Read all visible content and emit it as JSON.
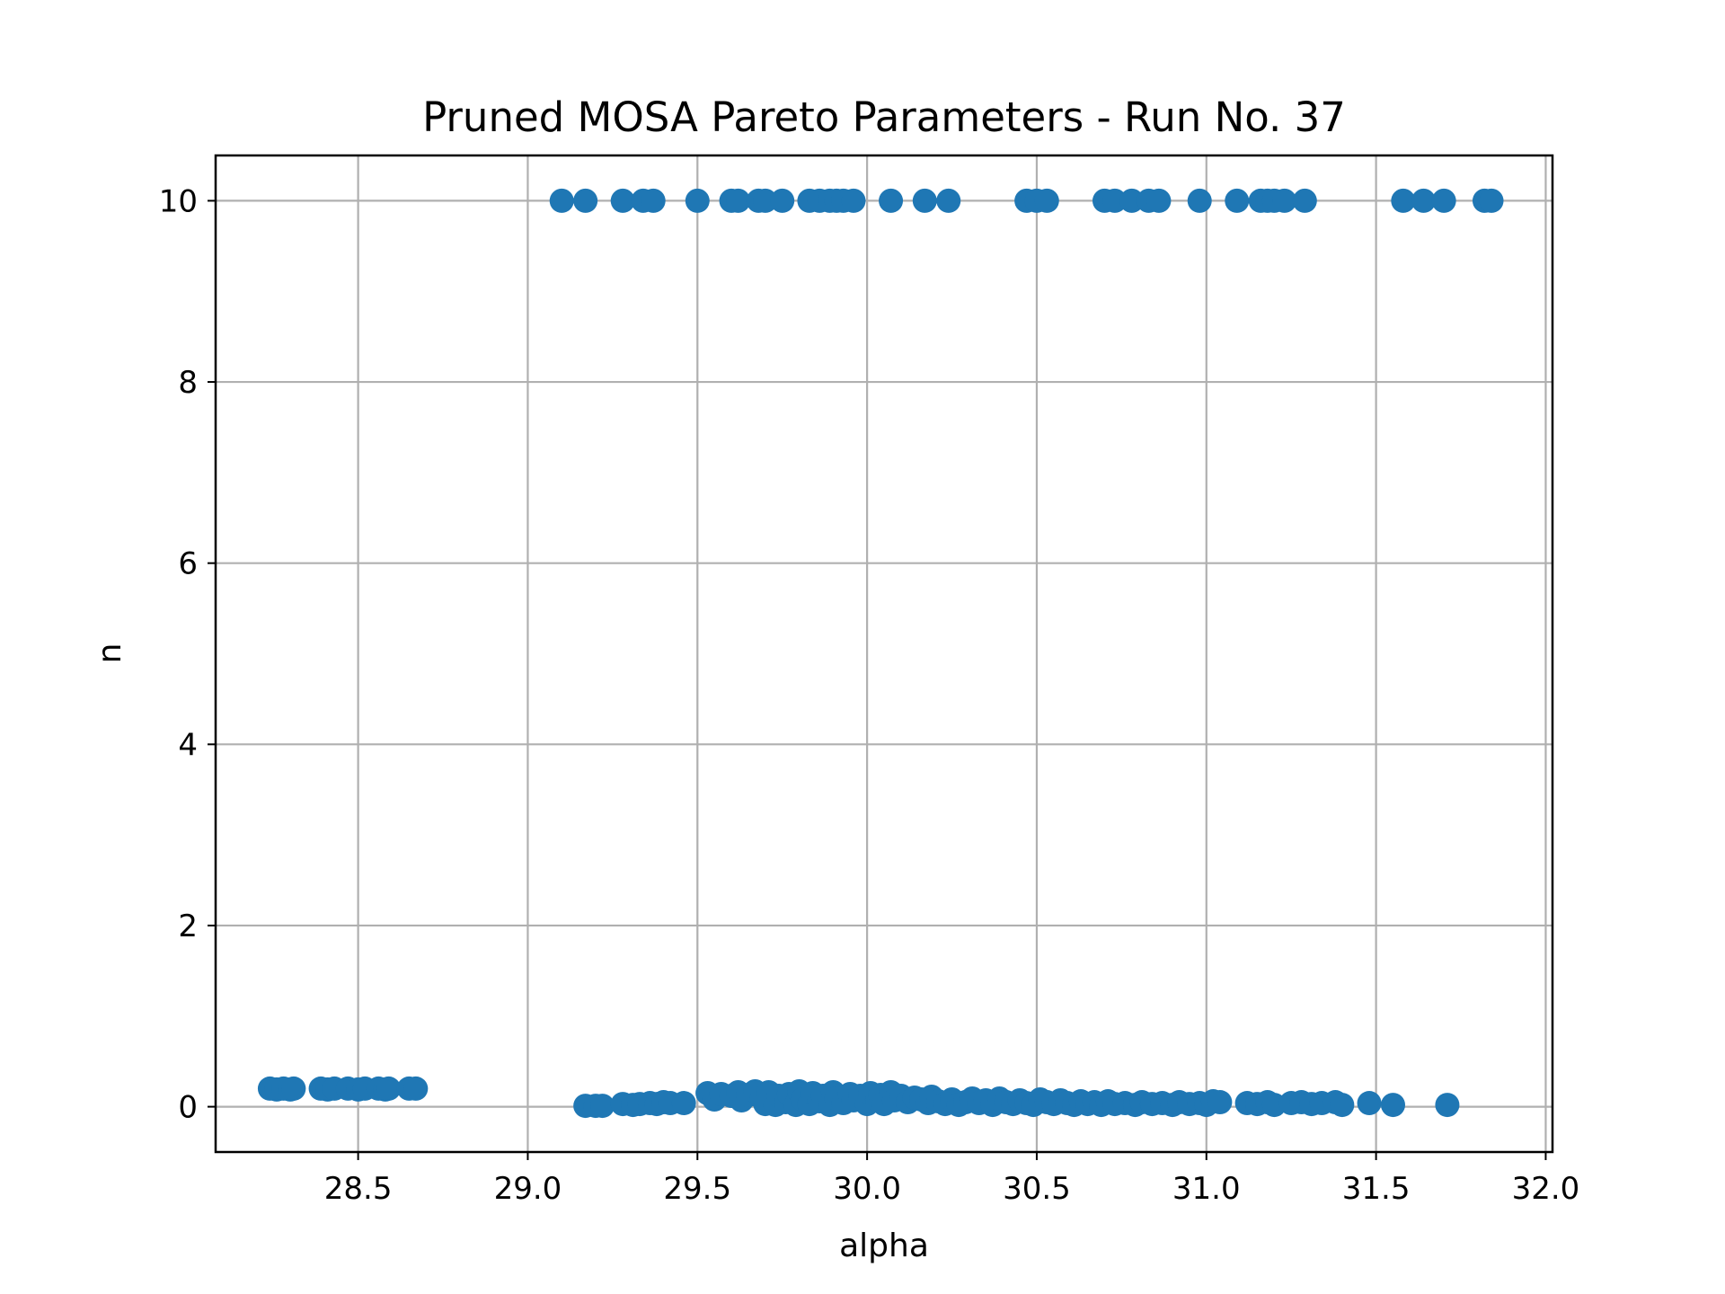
{
  "chart_data": {
    "type": "scatter",
    "title": "Pruned MOSA Pareto Parameters - Run No. 37",
    "xlabel": "alpha",
    "ylabel": "n",
    "xlim": [
      28.08,
      32.02
    ],
    "ylim": [
      -0.5,
      10.5
    ],
    "xticks": [
      28.5,
      29.0,
      29.5,
      30.0,
      30.5,
      31.0,
      31.5,
      32.0
    ],
    "xtick_labels": [
      "28.5",
      "29.0",
      "29.5",
      "30.0",
      "30.5",
      "31.0",
      "31.5",
      "32.0"
    ],
    "yticks": [
      0,
      2,
      4,
      6,
      8,
      10
    ],
    "ytick_labels": [
      "0",
      "2",
      "4",
      "6",
      "8",
      "10"
    ],
    "grid": true,
    "marker_color": "#1f77b4",
    "series": [
      {
        "points": [
          [
            28.24,
            0.2
          ],
          [
            28.26,
            0.19
          ],
          [
            28.28,
            0.2
          ],
          [
            28.3,
            0.19
          ],
          [
            28.31,
            0.2
          ],
          [
            28.39,
            0.2
          ],
          [
            28.41,
            0.19
          ],
          [
            28.43,
            0.2
          ],
          [
            28.47,
            0.2
          ],
          [
            28.5,
            0.19
          ],
          [
            28.52,
            0.2
          ],
          [
            28.56,
            0.2
          ],
          [
            28.58,
            0.19
          ],
          [
            28.59,
            0.2
          ],
          [
            28.65,
            0.2
          ],
          [
            28.67,
            0.2
          ],
          [
            29.1,
            10
          ],
          [
            29.17,
            10
          ],
          [
            29.28,
            10
          ],
          [
            29.34,
            10
          ],
          [
            29.37,
            10
          ],
          [
            29.5,
            10
          ],
          [
            29.6,
            10
          ],
          [
            29.62,
            10
          ],
          [
            29.68,
            10
          ],
          [
            29.7,
            10
          ],
          [
            29.75,
            10
          ],
          [
            29.83,
            10
          ],
          [
            29.86,
            10
          ],
          [
            29.89,
            10
          ],
          [
            29.91,
            10
          ],
          [
            29.93,
            10
          ],
          [
            29.96,
            10
          ],
          [
            30.07,
            10
          ],
          [
            30.17,
            10
          ],
          [
            30.24,
            10
          ],
          [
            30.47,
            10
          ],
          [
            30.5,
            10
          ],
          [
            30.53,
            10
          ],
          [
            30.7,
            10
          ],
          [
            30.73,
            10
          ],
          [
            30.78,
            10
          ],
          [
            30.83,
            10
          ],
          [
            30.86,
            10
          ],
          [
            30.98,
            10
          ],
          [
            31.09,
            10
          ],
          [
            31.16,
            10
          ],
          [
            31.18,
            10
          ],
          [
            31.2,
            10
          ],
          [
            31.23,
            10
          ],
          [
            31.29,
            10
          ],
          [
            31.58,
            10
          ],
          [
            31.64,
            10
          ],
          [
            31.7,
            10
          ],
          [
            31.82,
            10
          ],
          [
            31.84,
            10
          ],
          [
            29.17,
            0.01
          ],
          [
            29.2,
            0.01
          ],
          [
            29.22,
            0.01
          ],
          [
            29.28,
            0.03
          ],
          [
            29.31,
            0.02
          ],
          [
            29.33,
            0.03
          ],
          [
            29.36,
            0.04
          ],
          [
            29.38,
            0.03
          ],
          [
            29.4,
            0.05
          ],
          [
            29.42,
            0.04
          ],
          [
            29.46,
            0.04
          ],
          [
            29.53,
            0.15
          ],
          [
            29.55,
            0.08
          ],
          [
            29.57,
            0.14
          ],
          [
            29.6,
            0.12
          ],
          [
            29.62,
            0.16
          ],
          [
            29.63,
            0.07
          ],
          [
            29.65,
            0.13
          ],
          [
            29.67,
            0.17
          ],
          [
            29.69,
            0.1
          ],
          [
            29.7,
            0.03
          ],
          [
            29.71,
            0.16
          ],
          [
            29.73,
            0.02
          ],
          [
            29.74,
            0.12
          ],
          [
            29.76,
            0.05
          ],
          [
            29.77,
            0.14
          ],
          [
            29.79,
            0.02
          ],
          [
            29.8,
            0.17
          ],
          [
            29.81,
            0.08
          ],
          [
            29.83,
            0.03
          ],
          [
            29.84,
            0.15
          ],
          [
            29.86,
            0.06
          ],
          [
            29.87,
            0.12
          ],
          [
            29.89,
            0.02
          ],
          [
            29.9,
            0.16
          ],
          [
            29.91,
            0.09
          ],
          [
            29.93,
            0.04
          ],
          [
            29.95,
            0.14
          ],
          [
            29.96,
            0.07
          ],
          [
            29.98,
            0.12
          ],
          [
            30.0,
            0.03
          ],
          [
            30.01,
            0.15
          ],
          [
            30.03,
            0.08
          ],
          [
            30.04,
            0.13
          ],
          [
            30.05,
            0.03
          ],
          [
            30.07,
            0.16
          ],
          [
            30.08,
            0.07
          ],
          [
            30.1,
            0.12
          ],
          [
            30.12,
            0.05
          ],
          [
            30.14,
            0.1
          ],
          [
            30.16,
            0.08
          ],
          [
            30.18,
            0.04
          ],
          [
            30.19,
            0.11
          ],
          [
            30.21,
            0.06
          ],
          [
            30.23,
            0.03
          ],
          [
            30.25,
            0.08
          ],
          [
            30.27,
            0.02
          ],
          [
            30.29,
            0.05
          ],
          [
            30.31,
            0.09
          ],
          [
            30.33,
            0.04
          ],
          [
            30.35,
            0.07
          ],
          [
            30.37,
            0.02
          ],
          [
            30.39,
            0.09
          ],
          [
            30.41,
            0.05
          ],
          [
            30.43,
            0.03
          ],
          [
            30.45,
            0.07
          ],
          [
            30.47,
            0.04
          ],
          [
            30.49,
            0.02
          ],
          [
            30.51,
            0.08
          ],
          [
            30.53,
            0.05
          ],
          [
            30.55,
            0.03
          ],
          [
            30.57,
            0.07
          ],
          [
            30.59,
            0.04
          ],
          [
            30.61,
            0.02
          ],
          [
            30.63,
            0.06
          ],
          [
            30.65,
            0.03
          ],
          [
            30.67,
            0.05
          ],
          [
            30.69,
            0.02
          ],
          [
            30.71,
            0.06
          ],
          [
            30.73,
            0.03
          ],
          [
            30.76,
            0.04
          ],
          [
            30.79,
            0.02
          ],
          [
            30.81,
            0.05
          ],
          [
            30.84,
            0.03
          ],
          [
            30.87,
            0.04
          ],
          [
            30.9,
            0.02
          ],
          [
            30.92,
            0.05
          ],
          [
            30.95,
            0.03
          ],
          [
            30.98,
            0.04
          ],
          [
            31.0,
            0.02
          ],
          [
            31.02,
            0.06
          ],
          [
            31.04,
            0.05
          ],
          [
            31.12,
            0.04
          ],
          [
            31.15,
            0.03
          ],
          [
            31.18,
            0.05
          ],
          [
            31.2,
            0.02
          ],
          [
            31.25,
            0.04
          ],
          [
            31.28,
            0.05
          ],
          [
            31.31,
            0.03
          ],
          [
            31.34,
            0.04
          ],
          [
            31.38,
            0.05
          ],
          [
            31.4,
            0.02
          ],
          [
            31.48,
            0.04
          ],
          [
            31.55,
            0.02
          ],
          [
            31.71,
            0.02
          ]
        ]
      }
    ]
  }
}
